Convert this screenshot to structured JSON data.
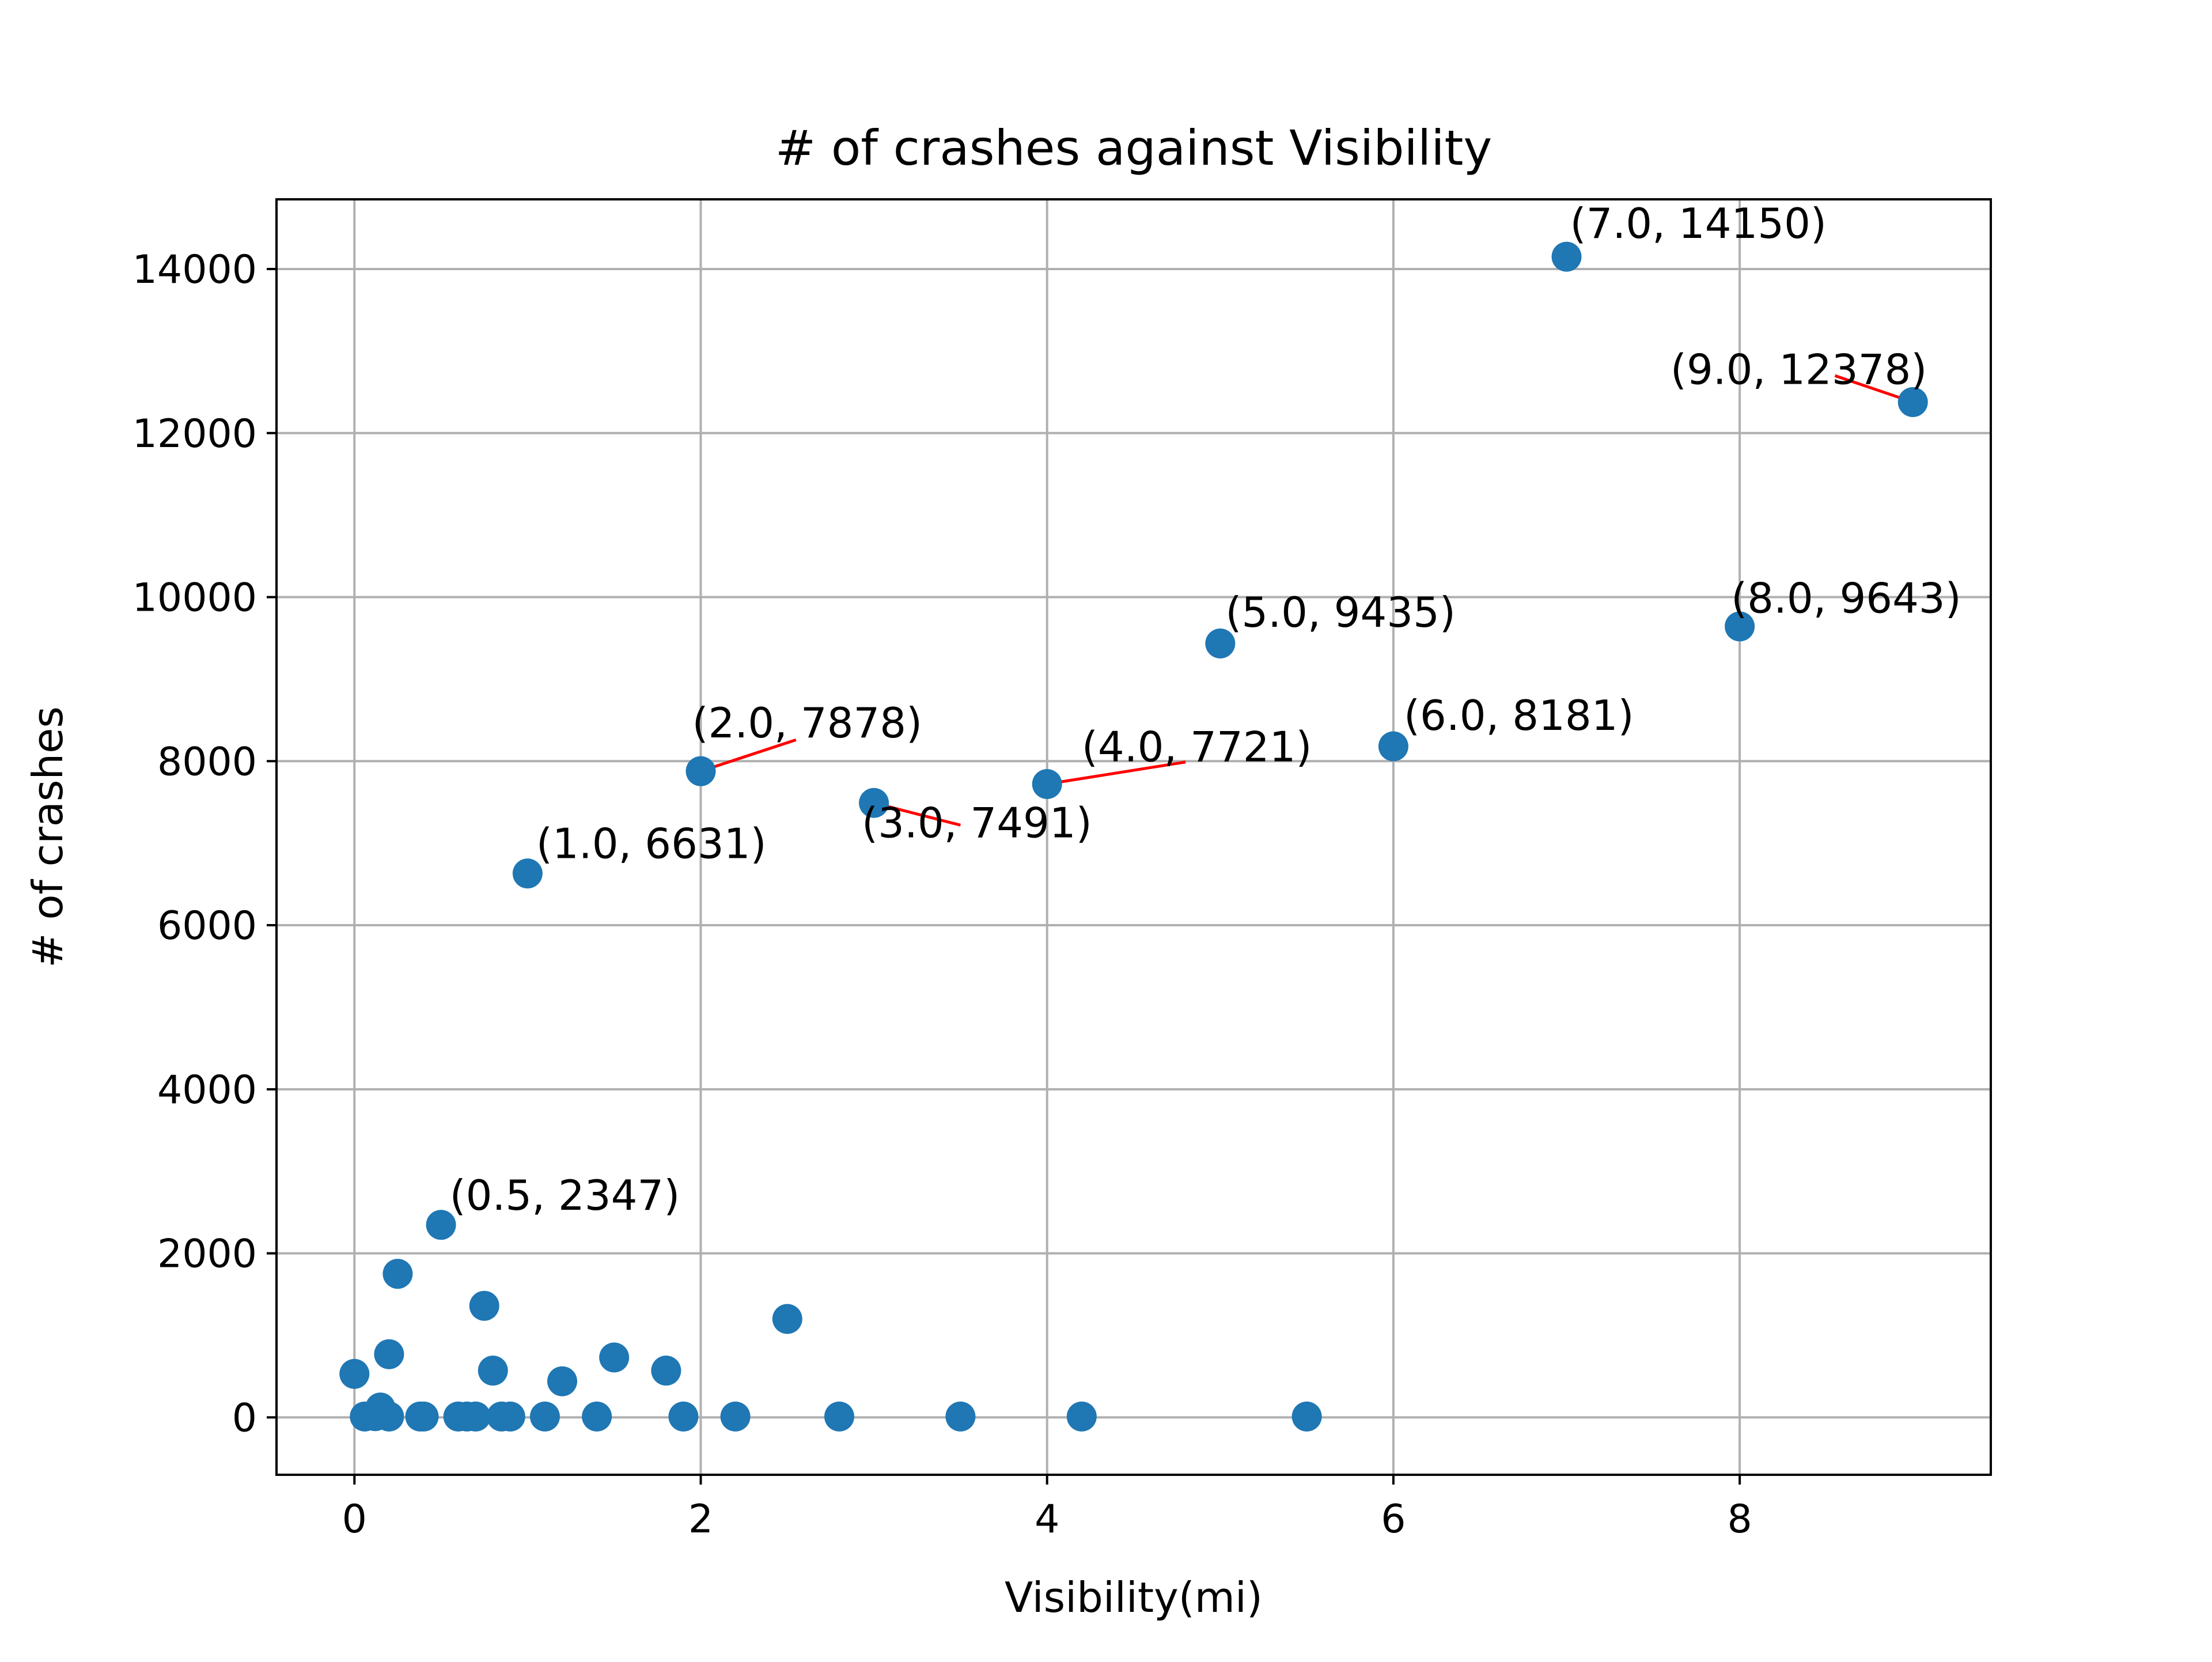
{
  "chart_data": {
    "type": "scatter",
    "title": "# of crashes against Visibility",
    "xlabel": "Visibility(mi)",
    "ylabel": "# of crashes",
    "xlim": [
      -0.45,
      9.45
    ],
    "ylim": [
      -700,
      14850
    ],
    "xticks": [
      0,
      2,
      4,
      6,
      8
    ],
    "yticks": [
      0,
      2000,
      4000,
      6000,
      8000,
      10000,
      12000,
      14000
    ],
    "grid": true,
    "marker_color": "#1f77b4",
    "annotation_line_color": "#ff0000",
    "series": [
      {
        "points": [
          [
            0.0,
            530
          ],
          [
            0.06,
            10
          ],
          [
            0.12,
            15
          ],
          [
            0.15,
            120
          ],
          [
            0.2,
            770
          ],
          [
            0.2,
            10
          ],
          [
            0.25,
            1750
          ],
          [
            0.38,
            10
          ],
          [
            0.4,
            10
          ],
          [
            0.5,
            2347
          ],
          [
            0.6,
            10
          ],
          [
            0.65,
            10
          ],
          [
            0.7,
            10
          ],
          [
            0.75,
            1360
          ],
          [
            0.8,
            570
          ],
          [
            0.85,
            10
          ],
          [
            0.9,
            10
          ],
          [
            1.0,
            6631
          ],
          [
            1.1,
            10
          ],
          [
            1.2,
            440
          ],
          [
            1.4,
            10
          ],
          [
            1.5,
            730
          ],
          [
            1.8,
            570
          ],
          [
            1.9,
            10
          ],
          [
            2.0,
            7878
          ],
          [
            2.2,
            10
          ],
          [
            2.5,
            1200
          ],
          [
            2.8,
            10
          ],
          [
            3.0,
            7491
          ],
          [
            3.5,
            10
          ],
          [
            4.0,
            7721
          ],
          [
            4.2,
            10
          ],
          [
            5.0,
            9435
          ],
          [
            5.5,
            10
          ],
          [
            6.0,
            8181
          ],
          [
            7.0,
            14150
          ],
          [
            8.0,
            9643
          ],
          [
            9.0,
            12378
          ]
        ]
      }
    ],
    "annotations": [
      {
        "text": "(0.5, 2347)",
        "x": 0.5,
        "y": 2347,
        "tx": 0.55,
        "ty": 2530,
        "line": false
      },
      {
        "text": "(1.0, 6631)",
        "x": 1.0,
        "y": 6631,
        "tx": 1.05,
        "ty": 6820,
        "line": false
      },
      {
        "text": "(2.0, 7878)",
        "x": 2.0,
        "y": 7878,
        "tx": 1.95,
        "ty": 8290,
        "line": true,
        "lx": 2.55,
        "ly": 8260
      },
      {
        "text": "(3.0, 7491)",
        "x": 3.0,
        "y": 7491,
        "tx": 2.93,
        "ty": 7070,
        "line": true,
        "lx": 3.5,
        "ly": 7220
      },
      {
        "text": "(4.0, 7721)",
        "x": 4.0,
        "y": 7721,
        "tx": 4.2,
        "ty": 8000,
        "line": true,
        "lx": 4.8,
        "ly": 7990
      },
      {
        "text": "(5.0, 9435)",
        "x": 5.0,
        "y": 9435,
        "tx": 5.03,
        "ty": 9640,
        "line": false
      },
      {
        "text": "(6.0, 8181)",
        "x": 6.0,
        "y": 8181,
        "tx": 6.06,
        "ty": 8380,
        "line": false
      },
      {
        "text": "(7.0, 14150)",
        "x": 7.0,
        "y": 14150,
        "tx": 7.02,
        "ty": 14380,
        "line": false
      },
      {
        "text": "(8.0, 9643)",
        "x": 8.0,
        "y": 9643,
        "tx": 7.95,
        "ty": 9810,
        "line": false
      },
      {
        "text": "(9.0, 12378)",
        "x": 9.0,
        "y": 12378,
        "tx": 7.6,
        "ty": 12600,
        "line": true,
        "lx": 8.55,
        "ly": 12700
      }
    ]
  }
}
